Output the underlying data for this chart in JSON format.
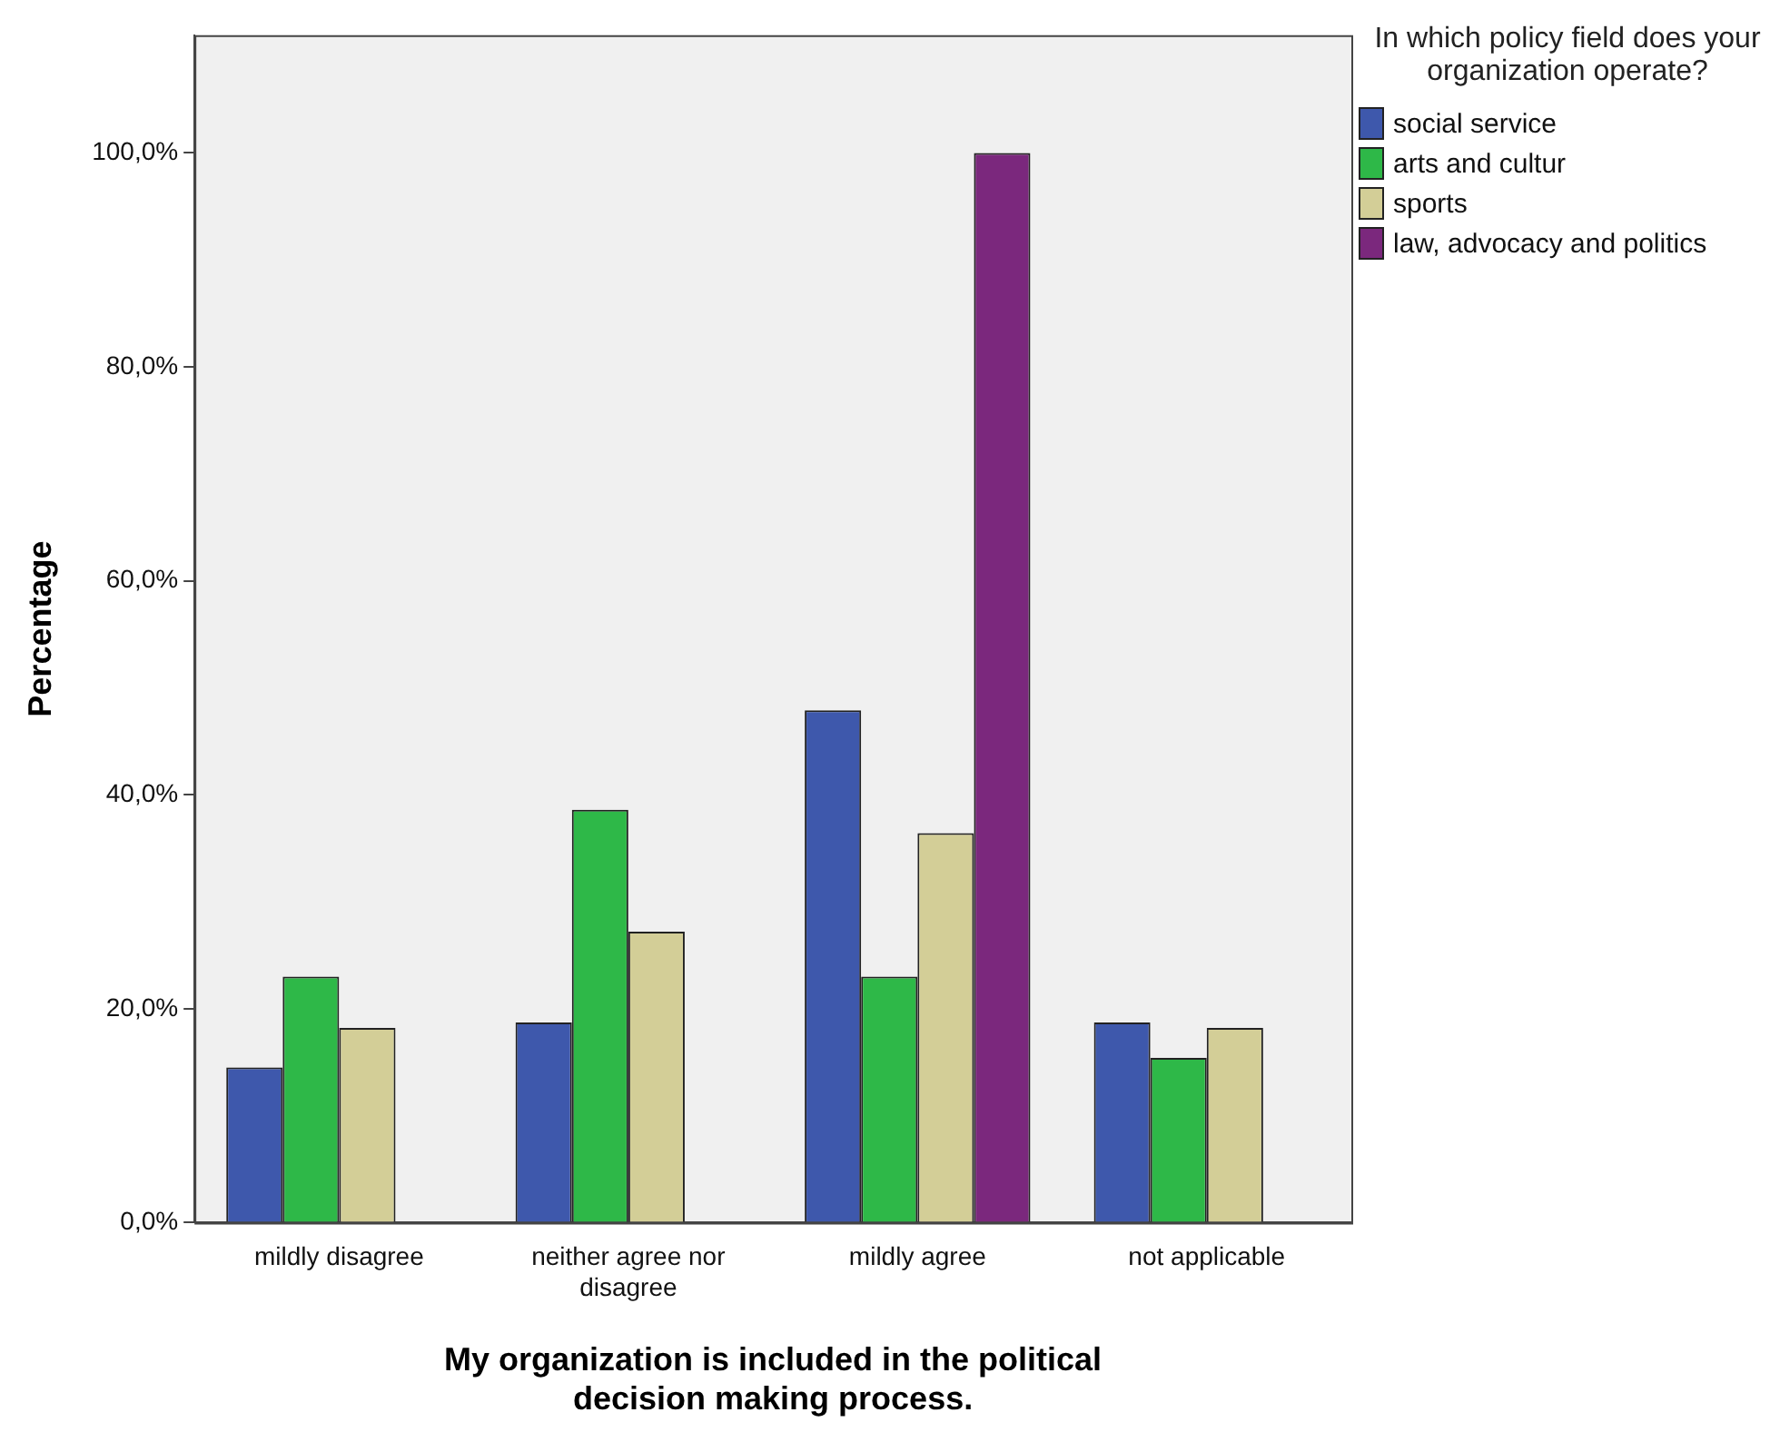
{
  "chart_data": {
    "type": "bar",
    "xlabel": "My organization is included in the political decision making process.",
    "ylabel": "Percentage",
    "legend_title": "In which policy field does your organization operate?",
    "categories": [
      "mildly disagree",
      "neither agree nor disagree",
      "mildly agree",
      "not applicable"
    ],
    "series": [
      {
        "name": "social service",
        "color": "#3e58ac",
        "values": [
          14.5,
          18.7,
          47.9,
          18.7
        ]
      },
      {
        "name": "arts and cultur",
        "color": "#2eb848",
        "values": [
          23.0,
          38.6,
          23.0,
          15.4
        ]
      },
      {
        "name": "sports",
        "color": "#d3ce97",
        "values": [
          18.2,
          27.2,
          36.4,
          18.2
        ]
      },
      {
        "name": "law, advocacy and politics",
        "color": "#7b287d",
        "values": [
          0,
          0,
          100,
          0
        ]
      }
    ],
    "ylim": [
      0,
      111
    ],
    "yticks": [
      {
        "value": 0,
        "label": "0,0%"
      },
      {
        "value": 20,
        "label": "20,0%"
      },
      {
        "value": 40,
        "label": "40,0%"
      },
      {
        "value": 60,
        "label": "60,0%"
      },
      {
        "value": 80,
        "label": "80,0%"
      },
      {
        "value": 100,
        "label": "100,0%"
      }
    ],
    "grid": false,
    "legend": "top right"
  }
}
